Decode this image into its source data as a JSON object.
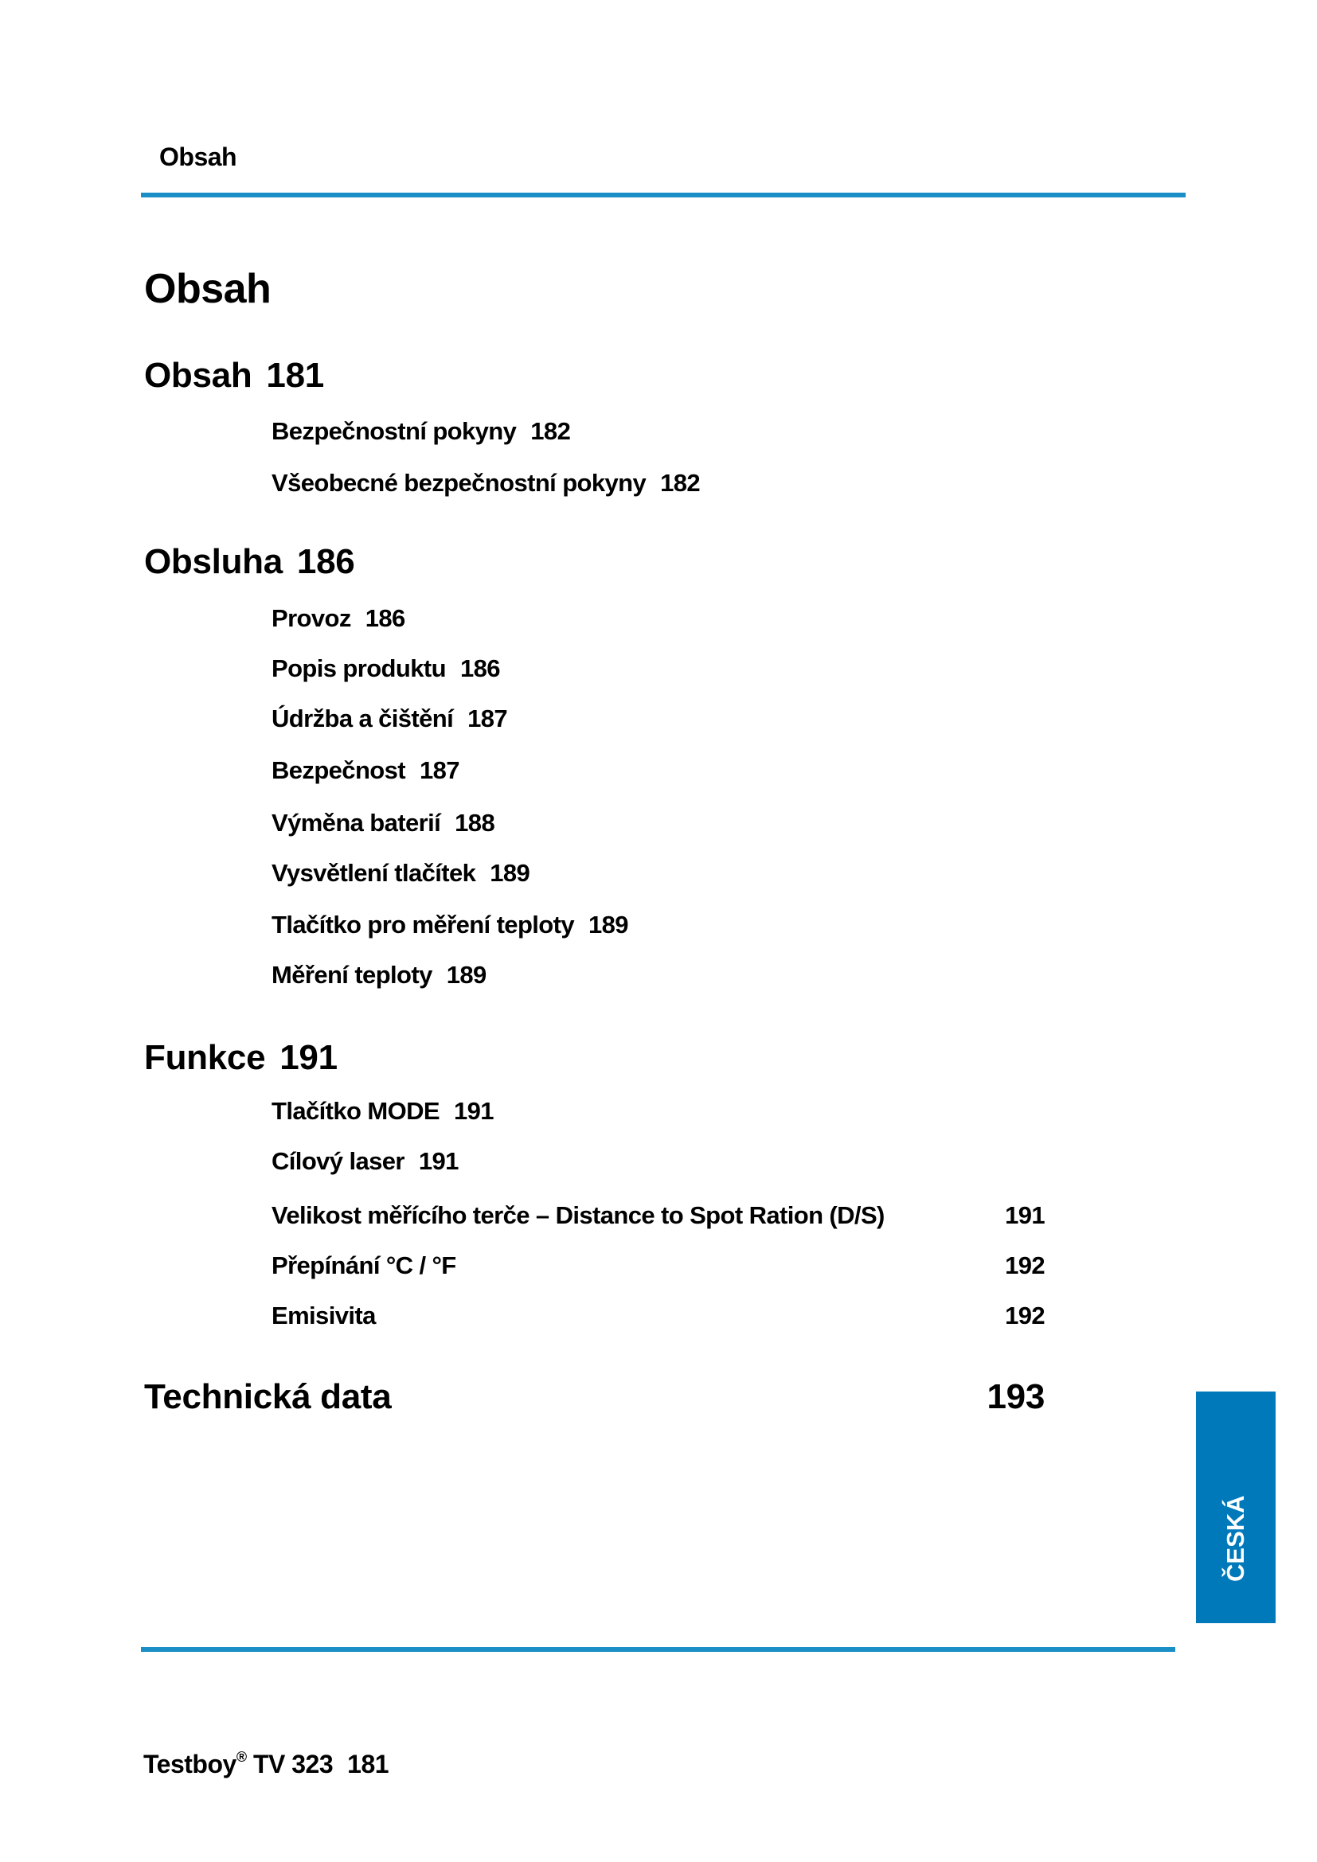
{
  "header": {
    "title": "Obsah"
  },
  "page_title": "Obsah",
  "sections": [
    {
      "title": "Obsah",
      "page": "181",
      "items": [
        {
          "label": "Bezpečnostní pokyny",
          "page": "182"
        },
        {
          "label": "Všeobecné bezpečnostní pokyny",
          "page": "182"
        }
      ]
    },
    {
      "title": "Obsluha",
      "page": "186",
      "items": [
        {
          "label": "Provoz",
          "page": "186"
        },
        {
          "label": "Popis produktu",
          "page": "186"
        },
        {
          "label": "Údržba a čištění",
          "page": "187"
        },
        {
          "label": "Bezpečnost",
          "page": "187"
        },
        {
          "label": "Výměna baterií",
          "page": "188"
        },
        {
          "label": "Vysvětlení tlačítek",
          "page": "189"
        },
        {
          "label": "Tlačítko pro měření teploty",
          "page": "189"
        },
        {
          "label": "Měření teploty",
          "page": "189"
        }
      ]
    },
    {
      "title": "Funkce",
      "page": "191",
      "items": [
        {
          "label": "Tlačítko MODE",
          "page": "191"
        },
        {
          "label": "Cílový laser",
          "page": "191"
        },
        {
          "label": "Velikost měřícího terče – Distance to Spot Ration (D/S)",
          "page": "191"
        },
        {
          "label": "Přepínání °C / °F",
          "page": "192"
        },
        {
          "label": "Emisivita",
          "page": "192"
        }
      ]
    },
    {
      "title": "Technická data",
      "page": "193",
      "items": []
    }
  ],
  "side_tab": {
    "label": "ČESKÁ",
    "color": "#0079bb"
  },
  "footer": {
    "brand": "Testboy",
    "registered": "®",
    "model": "TV 323",
    "page": "181"
  },
  "colors": {
    "rule": "#1a8fc6"
  }
}
